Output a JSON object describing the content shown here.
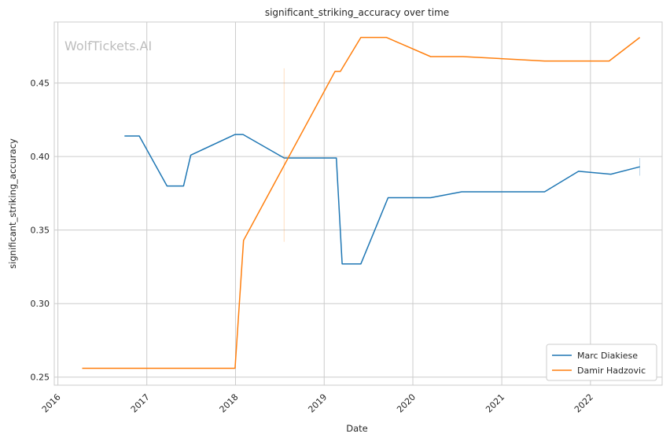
{
  "chart_data": {
    "type": "line",
    "title": "significant_striking_accuracy over time",
    "xlabel": "Date",
    "ylabel": "significant_striking_accuracy",
    "watermark": "WolfTickets.AI",
    "xlim": [
      "2015-12-17",
      "2022-10-23"
    ],
    "ylim": [
      0.2445,
      0.4915
    ],
    "x_ticks": [
      "2016",
      "2017",
      "2018",
      "2019",
      "2020",
      "2021",
      "2022"
    ],
    "y_ticks": [
      "0.25",
      "0.30",
      "0.35",
      "0.40",
      "0.45"
    ],
    "grid": true,
    "legend_position": "lower-right",
    "series": [
      {
        "name": "Marc Diakiese",
        "color": "#1f77b4",
        "points": [
          [
            "2016-10-01",
            0.414
          ],
          [
            "2016-12-01",
            0.414
          ],
          [
            "2017-03-25",
            0.38
          ],
          [
            "2017-06-01",
            0.38
          ],
          [
            "2017-07-01",
            0.401
          ],
          [
            "2017-12-30",
            0.415
          ],
          [
            "2018-02-01",
            0.415
          ],
          [
            "2018-07-20",
            0.399
          ],
          [
            "2019-02-20",
            0.399
          ],
          [
            "2019-03-16",
            0.327
          ],
          [
            "2019-06-01",
            0.327
          ],
          [
            "2019-09-21",
            0.372
          ],
          [
            "2020-03-14",
            0.372
          ],
          [
            "2020-07-20",
            0.376
          ],
          [
            "2021-06-26",
            0.376
          ],
          [
            "2021-11-13",
            0.39
          ],
          [
            "2022-03-26",
            0.388
          ],
          [
            "2022-07-23",
            0.393
          ]
        ]
      },
      {
        "name": "Damir Hadzovic",
        "color": "#ff7f0e",
        "points": [
          [
            "2016-04-10",
            0.256
          ],
          [
            "2017-12-30",
            0.256
          ],
          [
            "2018-02-03",
            0.343
          ],
          [
            "2019-02-15",
            0.458
          ],
          [
            "2019-03-09",
            0.458
          ],
          [
            "2019-06-01",
            0.481
          ],
          [
            "2019-09-14",
            0.481
          ],
          [
            "2020-03-14",
            0.468
          ],
          [
            "2020-07-25",
            0.468
          ],
          [
            "2021-06-26",
            0.465
          ],
          [
            "2022-03-19",
            0.465
          ],
          [
            "2022-07-23",
            0.481
          ]
        ]
      }
    ]
  }
}
